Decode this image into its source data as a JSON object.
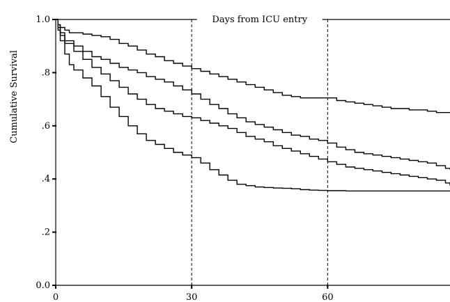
{
  "chart_data": {
    "type": "line",
    "title": "Days from ICU entry",
    "xlabel": "",
    "ylabel": "Cumulative Survival",
    "xlim": [
      0,
      87
    ],
    "ylim": [
      0.0,
      1.0
    ],
    "x_ticks": [
      {
        "value": 0,
        "label": "0"
      },
      {
        "value": 30,
        "label": "30"
      },
      {
        "value": 60,
        "label": "60"
      }
    ],
    "y_ticks": [
      {
        "value": 0.0,
        "label": "0.0"
      },
      {
        "value": 0.2,
        "label": ".2"
      },
      {
        "value": 0.4,
        "label": ".4"
      },
      {
        "value": 0.6,
        "label": ".6"
      },
      {
        "value": 0.8,
        "label": ".8"
      },
      {
        "value": 1.0,
        "label": "1.0"
      }
    ],
    "reference_lines_x": [
      30,
      60
    ],
    "grid": false,
    "legend": "none",
    "line_color": "#000000",
    "series": [
      {
        "x": [
          0,
          0.5,
          1,
          2,
          3,
          4,
          6,
          8,
          10,
          12,
          14,
          16,
          18,
          20,
          22,
          24,
          26,
          28,
          30,
          32,
          34,
          36,
          38,
          40,
          42,
          44,
          46,
          48,
          50,
          52,
          54,
          56,
          58,
          60,
          62,
          64,
          66,
          68,
          70,
          72,
          74,
          76,
          78,
          80,
          82,
          84,
          86,
          87
        ],
        "y": [
          1.0,
          0.98,
          0.97,
          0.96,
          0.95,
          0.95,
          0.945,
          0.94,
          0.935,
          0.925,
          0.91,
          0.9,
          0.885,
          0.87,
          0.86,
          0.845,
          0.835,
          0.825,
          0.815,
          0.805,
          0.795,
          0.785,
          0.775,
          0.765,
          0.755,
          0.745,
          0.735,
          0.725,
          0.715,
          0.71,
          0.705,
          0.705,
          0.705,
          0.705,
          0.695,
          0.69,
          0.685,
          0.68,
          0.675,
          0.67,
          0.665,
          0.665,
          0.66,
          0.66,
          0.655,
          0.65,
          0.65,
          0.65
        ]
      },
      {
        "x": [
          0,
          0.5,
          1,
          2,
          4,
          6,
          8,
          10,
          12,
          14,
          16,
          18,
          20,
          22,
          24,
          26,
          28,
          30,
          32,
          34,
          36,
          38,
          40,
          42,
          44,
          46,
          48,
          50,
          52,
          54,
          56,
          58,
          60,
          62,
          64,
          66,
          68,
          70,
          72,
          74,
          76,
          78,
          80,
          82,
          84,
          86,
          87
        ],
        "y": [
          1.0,
          0.98,
          0.95,
          0.92,
          0.9,
          0.88,
          0.86,
          0.85,
          0.835,
          0.82,
          0.81,
          0.8,
          0.785,
          0.775,
          0.765,
          0.75,
          0.735,
          0.72,
          0.7,
          0.68,
          0.665,
          0.645,
          0.63,
          0.615,
          0.605,
          0.595,
          0.585,
          0.575,
          0.565,
          0.56,
          0.55,
          0.545,
          0.535,
          0.52,
          0.51,
          0.5,
          0.495,
          0.49,
          0.485,
          0.48,
          0.475,
          0.47,
          0.465,
          0.46,
          0.45,
          0.44,
          0.435
        ]
      },
      {
        "x": [
          0,
          0.5,
          1,
          2,
          4,
          6,
          8,
          10,
          12,
          14,
          16,
          18,
          20,
          22,
          24,
          26,
          28,
          30,
          32,
          34,
          36,
          38,
          40,
          42,
          44,
          46,
          48,
          50,
          52,
          54,
          56,
          58,
          60,
          62,
          64,
          66,
          68,
          70,
          72,
          74,
          76,
          78,
          80,
          82,
          84,
          86,
          87
        ],
        "y": [
          1.0,
          0.97,
          0.94,
          0.91,
          0.88,
          0.85,
          0.82,
          0.795,
          0.77,
          0.745,
          0.72,
          0.7,
          0.68,
          0.665,
          0.655,
          0.645,
          0.635,
          0.63,
          0.62,
          0.61,
          0.6,
          0.59,
          0.575,
          0.56,
          0.55,
          0.54,
          0.525,
          0.515,
          0.505,
          0.495,
          0.485,
          0.475,
          0.465,
          0.455,
          0.445,
          0.44,
          0.435,
          0.43,
          0.425,
          0.42,
          0.415,
          0.41,
          0.405,
          0.4,
          0.395,
          0.385,
          0.375
        ]
      },
      {
        "x": [
          0,
          0.5,
          1,
          2,
          3,
          4,
          6,
          8,
          10,
          12,
          14,
          16,
          18,
          20,
          22,
          24,
          26,
          28,
          30,
          32,
          34,
          36,
          38,
          40,
          42,
          44,
          46,
          48,
          50,
          52,
          54,
          56,
          58,
          60,
          64,
          68,
          72,
          76,
          80,
          84,
          87
        ],
        "y": [
          1.0,
          0.96,
          0.92,
          0.87,
          0.83,
          0.81,
          0.78,
          0.75,
          0.71,
          0.67,
          0.635,
          0.6,
          0.57,
          0.545,
          0.53,
          0.515,
          0.5,
          0.49,
          0.48,
          0.46,
          0.435,
          0.415,
          0.395,
          0.38,
          0.375,
          0.37,
          0.368,
          0.366,
          0.365,
          0.363,
          0.36,
          0.358,
          0.357,
          0.356,
          0.355,
          0.355,
          0.355,
          0.355,
          0.355,
          0.355,
          0.355
        ]
      }
    ]
  }
}
